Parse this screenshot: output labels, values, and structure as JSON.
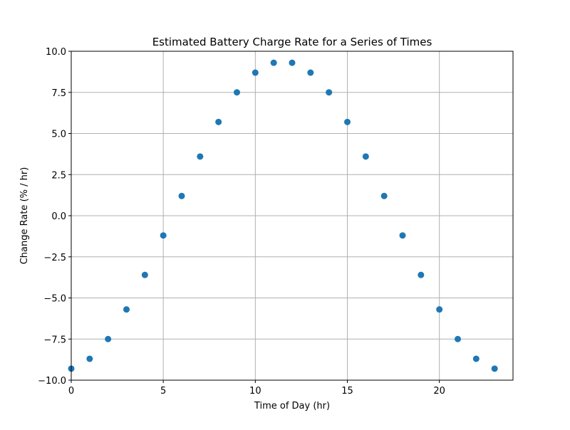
{
  "chart_data": {
    "type": "scatter",
    "title": "Estimated Battery Charge Rate for a Series of Times",
    "xlabel": "Time of Day (hr)",
    "ylabel": "Change Rate (% / hr)",
    "xlim": [
      0,
      24
    ],
    "ylim": [
      -10,
      10
    ],
    "xticks": [
      0,
      5,
      10,
      15,
      20
    ],
    "xtick_labels": [
      "0",
      "5",
      "10",
      "15",
      "20"
    ],
    "yticks": [
      -10,
      -7.5,
      -5,
      -2.5,
      0,
      2.5,
      5,
      7.5,
      10
    ],
    "ytick_labels": [
      "−10.0",
      "−7.5",
      "−5.0",
      "−2.5",
      "0.0",
      "2.5",
      "5.0",
      "7.5",
      "10.0"
    ],
    "grid": true,
    "series": [
      {
        "color": "#1f77b4",
        "x": [
          0,
          1,
          2,
          3,
          4,
          5,
          6,
          7,
          8,
          9,
          10,
          11,
          12,
          13,
          14,
          15,
          16,
          17,
          18,
          19,
          20,
          21,
          22,
          23
        ],
        "y": [
          -9.3,
          -8.7,
          -7.5,
          -5.7,
          -3.6,
          -1.2,
          1.2,
          3.6,
          5.7,
          7.5,
          8.7,
          9.3,
          9.3,
          8.7,
          7.5,
          5.7,
          3.6,
          1.2,
          -1.2,
          -3.6,
          -5.7,
          -7.5,
          -8.7,
          -9.3
        ]
      }
    ]
  }
}
